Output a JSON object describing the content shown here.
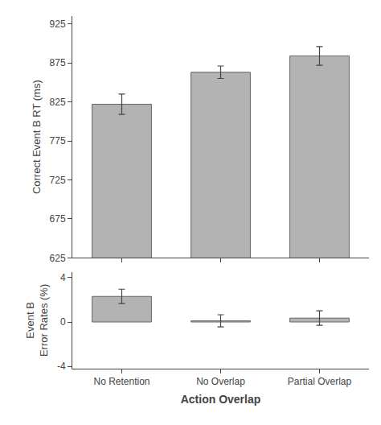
{
  "chart_data": [
    {
      "type": "bar",
      "categories": [
        "No Retention",
        "No Overlap",
        "Partial Overlap"
      ],
      "values": [
        822,
        863,
        884
      ],
      "errors": [
        13,
        8,
        12
      ],
      "color": "#b3b3b3",
      "ylabel": "Correct Event B RT (ms)",
      "ylim": [
        625,
        935
      ],
      "yticks": [
        625,
        675,
        725,
        775,
        825,
        875,
        925
      ],
      "grid": false,
      "tick_labels": "y"
    },
    {
      "type": "bar",
      "categories": [
        "No Retention",
        "No Overlap",
        "Partial Overlap"
      ],
      "values": [
        2.3,
        0.1,
        0.35
      ],
      "errors": [
        0.65,
        0.55,
        0.65
      ],
      "color": "#b3b3b3",
      "ylabel": "Event B\nError Rates (%)",
      "xlabel": "Action Overlap",
      "ylim": [
        -4.2,
        4.5
      ],
      "yticks": [
        -4,
        0,
        4
      ],
      "grid": false
    }
  ]
}
